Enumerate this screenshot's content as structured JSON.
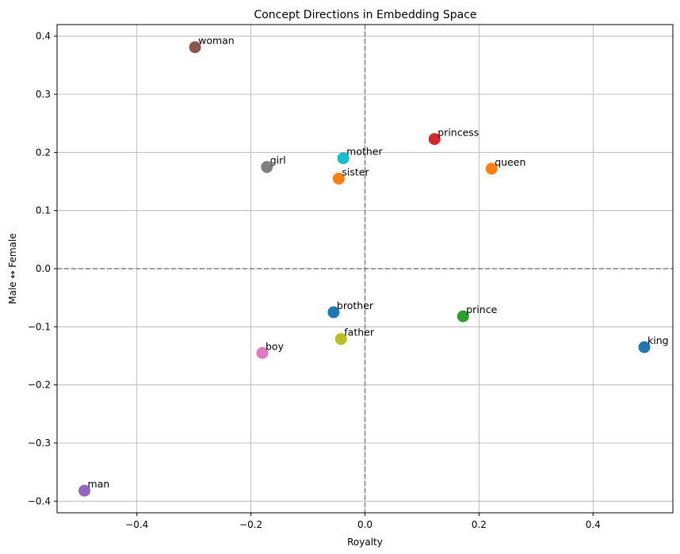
{
  "chart_data": {
    "type": "scatter",
    "title": "Concept Directions in Embedding Space",
    "xlabel": "Royalty",
    "ylabel": "Male ↔ Female",
    "xlim": [
      -0.54,
      0.54
    ],
    "ylim": [
      -0.42,
      0.42
    ],
    "xticks": [
      -0.4,
      -0.2,
      0.0,
      0.2,
      0.4
    ],
    "xtick_labels": [
      "−0.4",
      "−0.2",
      "0.0",
      "0.2",
      "0.4"
    ],
    "yticks": [
      -0.4,
      -0.3,
      -0.2,
      -0.1,
      0.0,
      0.1,
      0.2,
      0.3,
      0.4
    ],
    "ytick_labels": [
      "−0.4",
      "−0.3",
      "−0.2",
      "−0.1",
      "0.0",
      "0.1",
      "0.2",
      "0.3",
      "0.4"
    ],
    "grid": true,
    "reference_lines": {
      "x": 0,
      "y": 0,
      "style": "dashed",
      "color": "#808080"
    },
    "points": [
      {
        "label": "king",
        "x": 0.49,
        "y": -0.135,
        "color": "#1f77b4"
      },
      {
        "label": "queen",
        "x": 0.222,
        "y": 0.172,
        "color": "#ff7f0e"
      },
      {
        "label": "prince",
        "x": 0.172,
        "y": -0.082,
        "color": "#2ca02c"
      },
      {
        "label": "princess",
        "x": 0.122,
        "y": 0.223,
        "color": "#d62728"
      },
      {
        "label": "man",
        "x": -0.492,
        "y": -0.382,
        "color": "#9467bd"
      },
      {
        "label": "woman",
        "x": -0.298,
        "y": 0.381,
        "color": "#8c564b"
      },
      {
        "label": "boy",
        "x": -0.18,
        "y": -0.145,
        "color": "#e377c2"
      },
      {
        "label": "girl",
        "x": -0.172,
        "y": 0.175,
        "color": "#7f7f7f"
      },
      {
        "label": "father",
        "x": -0.042,
        "y": -0.121,
        "color": "#bcbd22"
      },
      {
        "label": "mother",
        "x": -0.038,
        "y": 0.19,
        "color": "#17becf"
      },
      {
        "label": "brother",
        "x": -0.055,
        "y": -0.075,
        "color": "#1f77b4"
      },
      {
        "label": "sister",
        "x": -0.046,
        "y": 0.155,
        "color": "#ff7f0e"
      }
    ]
  }
}
